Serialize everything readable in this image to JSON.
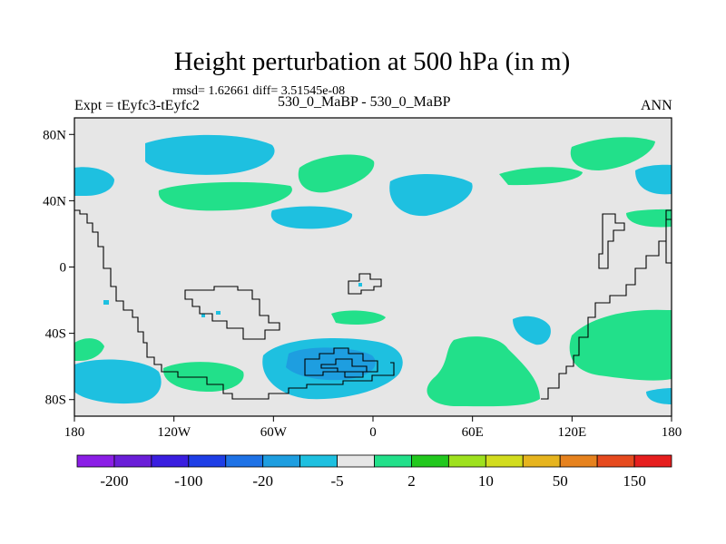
{
  "title": "Height perturbation at 500 hPa (in m)",
  "stats": "rmsd= 1.62661 diff= 3.51545e-08",
  "left_label": "Expt = tEyfc3-tEyfc2",
  "center_label": "530_0_MaBP - 530_0_MaBP",
  "right_label": "ANN",
  "colors": {
    "background": "#e6e6e6",
    "positive_fill": "#22e08a",
    "negative_fill": "#1ec0e0",
    "strong_negative_fill": "#1e9ee0",
    "contour": "#000000"
  },
  "map": {
    "x_ticks": [
      "180",
      "120W",
      "60W",
      "0",
      "60E",
      "120E",
      "180"
    ],
    "y_ticks": [
      "80N",
      "40N",
      "0",
      "40S",
      "80S"
    ],
    "lon_range": [
      -180,
      180
    ],
    "lat_range": [
      -90,
      90
    ]
  },
  "colorbar": {
    "colors": [
      "#8b1ee6",
      "#6a1ed8",
      "#3a1ee0",
      "#1e3ee6",
      "#1e72e6",
      "#1e9ee0",
      "#1ec0e0",
      "#e6e6e6",
      "#22e08a",
      "#22c81e",
      "#9ee11e",
      "#d2dc1e",
      "#e6b41e",
      "#e6821e",
      "#e64a1e",
      "#e61e1e"
    ],
    "labels": [
      "-200",
      "-100",
      "-20",
      "-5",
      "2",
      "10",
      "50",
      "150"
    ]
  }
}
